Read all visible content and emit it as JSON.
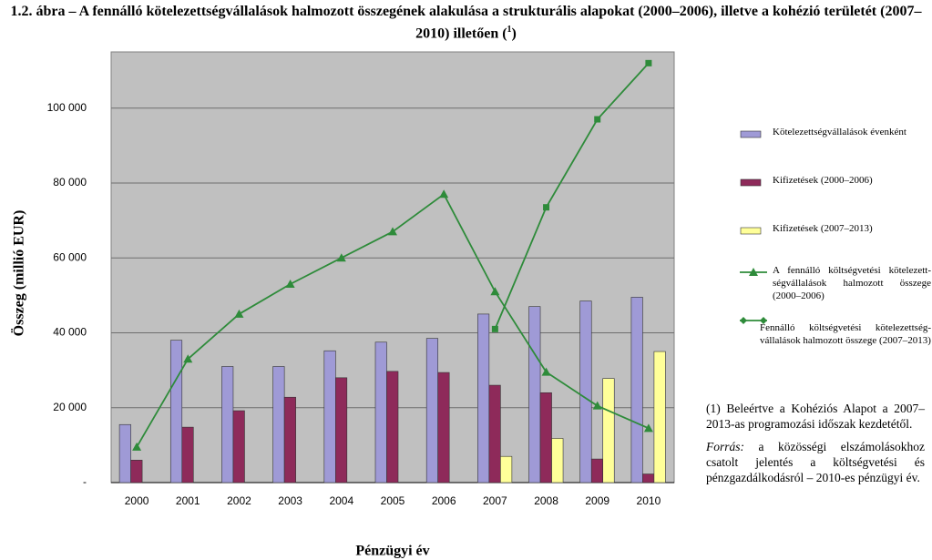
{
  "chart_data": {
    "type": "bar-line",
    "title": "1.2. ábra – A fennálló kötelezettségvállalások halmozott összegének alakulása a strukturális alapokat (2000–2006), illetve a kohézió területét (2007–2010) illetően (",
    "title_note": "1",
    "title_end": ")",
    "y_label": "Összeg (millió EUR)",
    "x_label": "Pénzügyi év",
    "categories": [
      "2000",
      "2001",
      "2002",
      "2003",
      "2004",
      "2005",
      "2006",
      "2007",
      "2008",
      "2009",
      "2010"
    ],
    "ylim": [
      0,
      115000
    ],
    "yticks": [
      {
        "value": 0,
        "label": "-"
      },
      {
        "value": 20000,
        "label": "20 000"
      },
      {
        "value": 40000,
        "label": "40 000"
      },
      {
        "value": 60000,
        "label": "60 000"
      },
      {
        "value": 80000,
        "label": "80 000"
      },
      {
        "value": 100000,
        "label": "100 000"
      }
    ],
    "grid": true,
    "series": [
      {
        "name": "Kötelezettségvállalások évenként",
        "kind": "bar",
        "color": "#9f9ad6",
        "values": [
          15500,
          38000,
          31000,
          31000,
          35200,
          37500,
          38500,
          45000,
          47000,
          48500,
          49500
        ]
      },
      {
        "name": "Kifizetések (2000–2006)",
        "kind": "bar",
        "color": "#8e2a5a",
        "values": [
          6000,
          14800,
          19200,
          22800,
          28000,
          29700,
          29400,
          26000,
          24000,
          6300,
          2300
        ]
      },
      {
        "name": "Kifizetések (2007–2013)",
        "kind": "bar",
        "color": "#ffff99",
        "values": [
          null,
          null,
          null,
          null,
          null,
          null,
          null,
          7000,
          11800,
          27800,
          35000
        ]
      },
      {
        "name": "A fennálló költségvetési kötelezett-ségvállalások halmozott összege (2000–2006)",
        "kind": "line",
        "marker": "triangle",
        "color": "#2e8b3a",
        "values": [
          9500,
          33000,
          45000,
          53000,
          60000,
          67000,
          77000,
          51000,
          29500,
          20500,
          14500
        ]
      },
      {
        "name": "Fennálló költségvetési kötelezettség-vállalások halmozott összege (2007–2013)",
        "kind": "line",
        "marker": "square",
        "color": "#2e8b3a",
        "values": [
          null,
          null,
          null,
          null,
          null,
          null,
          null,
          41000,
          73500,
          97000,
          112000
        ]
      }
    ],
    "footnote_marker": "(1)",
    "footnote": "Beleértve a Kohéziós Alapot a 2007–2013-as programozási időszak kezdetétől.",
    "source_label": "Forrás:",
    "source": "a közösségi elszámolásokhoz csatolt jelentés a költségvetési és pénzgazdálkodásról – 2010-es pénzügyi év."
  }
}
